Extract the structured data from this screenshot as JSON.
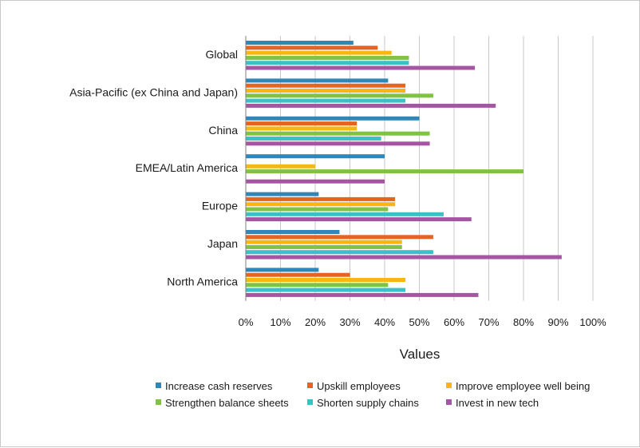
{
  "chart_data": {
    "type": "bar",
    "orientation": "horizontal",
    "categories": [
      "Global",
      "Asia-Pacific (ex China and Japan)",
      "China",
      "EMEA/Latin America",
      "Europe",
      "Japan",
      "North America"
    ],
    "series": [
      {
        "name": "Increase cash reserves",
        "color": "#2f86b9",
        "values": [
          31,
          41,
          50,
          40,
          21,
          27,
          21
        ]
      },
      {
        "name": "Upskill employees",
        "color": "#e8641e",
        "values": [
          38,
          46,
          32,
          0,
          43,
          54,
          30
        ]
      },
      {
        "name": "Improve employee well being",
        "color": "#f6b712",
        "values": [
          42,
          46,
          32,
          20,
          43,
          45,
          46
        ]
      },
      {
        "name": "Strengthen balance sheets",
        "color": "#80c243",
        "values": [
          47,
          54,
          53,
          80,
          41,
          45,
          41
        ]
      },
      {
        "name": "Shorten supply chains",
        "color": "#3cc0c7",
        "values": [
          47,
          46,
          39,
          0,
          57,
          54,
          46
        ]
      },
      {
        "name": "Invest in new tech",
        "color": "#a556a3",
        "values": [
          66,
          72,
          53,
          40,
          65,
          91,
          67
        ]
      }
    ],
    "xlabel": "Values",
    "ylabel": "",
    "xlim": [
      0,
      100
    ],
    "x_ticks": [
      "0%",
      "10%",
      "20%",
      "30%",
      "40%",
      "50%",
      "60%",
      "70%",
      "80%",
      "90%",
      "100%"
    ],
    "grid": "vertical",
    "legend_position": "bottom"
  }
}
